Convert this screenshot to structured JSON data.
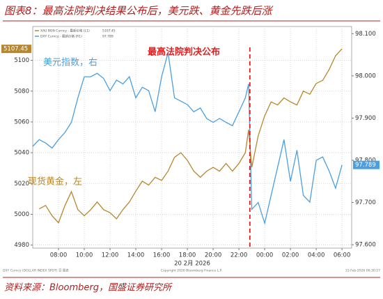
{
  "chart_data": {
    "type": "line",
    "title": "图表8：最高法院判决结果公布后，美元跌、黄金先跌后涨",
    "source": "资料来源：Bloomberg，国盛证券研究所",
    "x_label": "20 2月 2026",
    "x": [
      6,
      6.5,
      7,
      7.5,
      8,
      8.5,
      9,
      9.5,
      10,
      10.5,
      11,
      11.5,
      12,
      12.5,
      13,
      13.5,
      14,
      14.5,
      15,
      15.5,
      16,
      16.5,
      17,
      17.5,
      18,
      18.5,
      19,
      19.5,
      20,
      20.5,
      21,
      21.5,
      22,
      22.5,
      22.75,
      23,
      23.5,
      24,
      24.5,
      25,
      25.5,
      26,
      26.5,
      27,
      27.5,
      28,
      28.5,
      29,
      29.5,
      30
    ],
    "xlim": [
      6,
      30.75
    ],
    "xticks": [
      {
        "value": 8,
        "label": "08:00"
      },
      {
        "value": 10,
        "label": "10:00"
      },
      {
        "value": 12,
        "label": "12:00"
      },
      {
        "value": 14,
        "label": "14:00"
      },
      {
        "value": 16,
        "label": "16:00"
      },
      {
        "value": 18,
        "label": "18:00"
      },
      {
        "value": 20,
        "label": "20:00"
      },
      {
        "value": 22,
        "label": "22:00"
      },
      {
        "value": 24,
        "label": "00:00"
      },
      {
        "value": 26,
        "label": "02:00"
      },
      {
        "value": 28,
        "label": "04:00"
      },
      {
        "value": 30,
        "label": "06:00"
      }
    ],
    "ylim": [
      4978,
      5122
    ],
    "yticks": [
      4980,
      5000,
      5020,
      5040,
      5060,
      5080,
      5100
    ],
    "y2lim": [
      97.592,
      98.117
    ],
    "y2ticks": [
      {
        "value": 97.6,
        "label": "97.600"
      },
      {
        "value": 97.7,
        "label": "97.700"
      },
      {
        "value": 97.8,
        "label": "97.800"
      },
      {
        "value": 97.9,
        "label": "97.900"
      },
      {
        "value": 98.0,
        "label": "98.000"
      },
      {
        "value": 98.1,
        "label": "98.100"
      }
    ],
    "grid": true,
    "series": [
      {
        "name": "DXY Curncy - 最新价格 (R1)",
        "color": "#4a9fe0",
        "axis": "y2",
        "values": [
          97.833,
          97.849,
          97.841,
          97.829,
          97.849,
          97.866,
          97.89,
          97.948,
          97.998,
          97.998,
          98.006,
          97.994,
          97.965,
          97.99,
          97.981,
          97.998,
          97.948,
          97.973,
          97.965,
          97.915,
          97.998,
          98.055,
          97.948,
          97.94,
          97.932,
          97.915,
          97.924,
          97.899,
          97.89,
          97.899,
          97.89,
          97.882,
          97.915,
          97.948,
          97.981,
          97.684,
          97.7,
          97.651,
          97.717,
          97.783,
          97.849,
          97.75,
          97.824,
          97.717,
          97.701,
          97.8,
          97.808,
          97.775,
          97.734,
          97.789
        ]
      },
      {
        "name": "XAU BGN Curncy - 最新价格 (L1)",
        "color": "#b8862b",
        "values": [
          null,
          5003.5,
          5005.7,
          4999,
          4994.5,
          5005.7,
          5014.7,
          5003,
          4999,
          5003,
          5008,
          5003,
          5001,
          4997,
          5003,
          5008,
          5015,
          5021.5,
          5019,
          5024,
          5022,
          5028,
          5037,
          5040,
          5035,
          5028,
          5024,
          5028,
          5030.5,
          5028,
          5033,
          5028,
          5033,
          5040,
          5055,
          5030.5,
          5051,
          5064,
          5073,
          5071,
          5075.6,
          5073,
          5071,
          5080,
          5078,
          5085,
          5087,
          5094,
          5103,
          5107.45
        ]
      }
    ],
    "annotations": [
      {
        "text": "美元指数，右",
        "color": "#4a9fe0"
      },
      {
        "text": "现货黄金，左",
        "color": "#b8862b"
      },
      {
        "text": "最高法院判决公布",
        "color": "#e02020",
        "x": 22.85
      }
    ],
    "footer": [
      "DXY Curncy (DOLLAR INDEX SPOT) 日 图表",
      "Copyright 2026 Bloomberg Finance L.P.",
      "22-Feb-2026 06:30:27"
    ]
  }
}
